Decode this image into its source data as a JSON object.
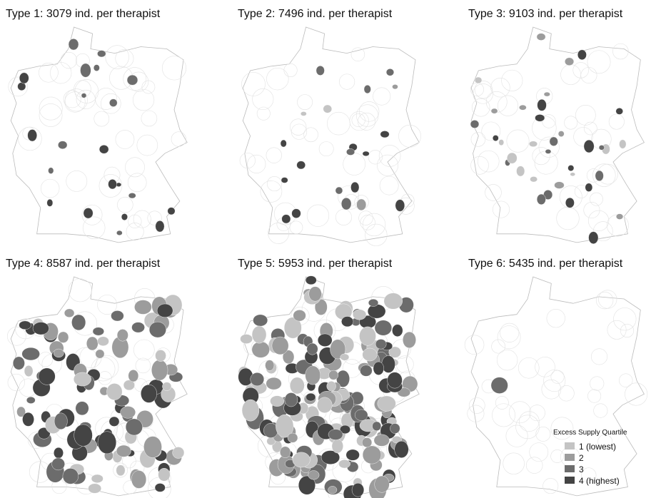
{
  "panels": [
    {
      "title": "Type 1:  3079 ind. per therapist"
    },
    {
      "title": "Type 2:  7496 ind. per therapist"
    },
    {
      "title": "Type 3:  9103 ind. per therapist"
    },
    {
      "title": "Type 4:  8587 ind. per therapist"
    },
    {
      "title": "Type 5:  5953 ind. per therapist"
    },
    {
      "title": "Type 6:  5435 ind. per therapist"
    }
  ],
  "legend": {
    "title": "Excess Supply Quartile",
    "items": [
      {
        "label": "1 (lowest)",
        "color": "#c4c4c4"
      },
      {
        "label": "2",
        "color": "#9c9c9c"
      },
      {
        "label": "3",
        "color": "#6c6c6c"
      },
      {
        "label": "4 (highest)",
        "color": "#444444"
      }
    ]
  }
}
